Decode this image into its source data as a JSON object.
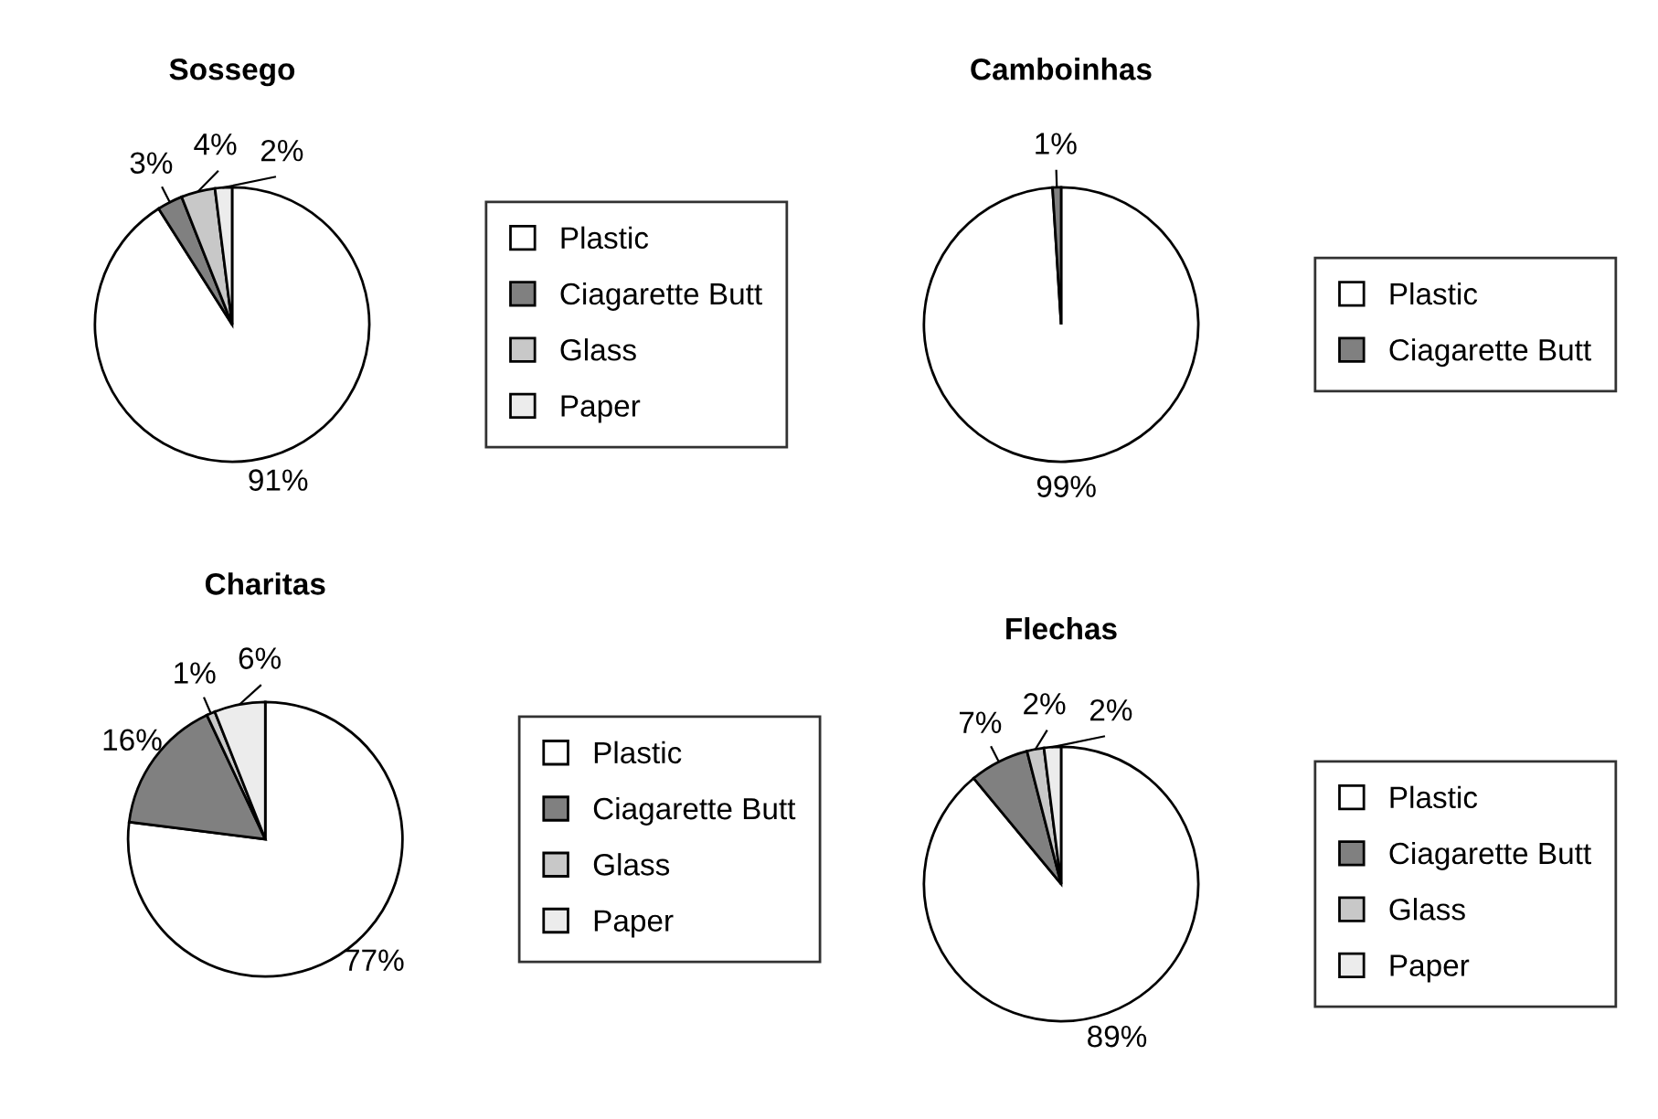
{
  "chart_data": [
    {
      "type": "pie",
      "title": "Sossego",
      "categories": [
        "Plastic",
        "Ciagarette Butt",
        "Glass",
        "Paper"
      ],
      "values": [
        91,
        3,
        4,
        2
      ],
      "value_labels": [
        "91%",
        "3%",
        "4%",
        "2%"
      ],
      "colors": [
        "#ffffff",
        "#808080",
        "#c8c8c8",
        "#ececec"
      ],
      "legend": "right"
    },
    {
      "type": "pie",
      "title": "Camboinhas",
      "categories": [
        "Plastic",
        "Ciagarette Butt"
      ],
      "values": [
        99,
        1
      ],
      "value_labels": [
        "99%",
        "1%"
      ],
      "colors": [
        "#ffffff",
        "#808080"
      ],
      "legend": "right"
    },
    {
      "type": "pie",
      "title": "Charitas",
      "categories": [
        "Plastic",
        "Ciagarette Butt",
        "Glass",
        "Paper"
      ],
      "values": [
        77,
        16,
        1,
        6
      ],
      "value_labels": [
        "77%",
        "16%",
        "1%",
        "6%"
      ],
      "colors": [
        "#ffffff",
        "#808080",
        "#c8c8c8",
        "#ececec"
      ],
      "legend": "right"
    },
    {
      "type": "pie",
      "title": "Flechas",
      "categories": [
        "Plastic",
        "Ciagarette Butt",
        "Glass",
        "Paper"
      ],
      "values": [
        89,
        7,
        2,
        2
      ],
      "value_labels": [
        "89%",
        "7%",
        "2%",
        "2%"
      ],
      "colors": [
        "#ffffff",
        "#808080",
        "#c8c8c8",
        "#ececec"
      ],
      "legend": "right"
    }
  ]
}
